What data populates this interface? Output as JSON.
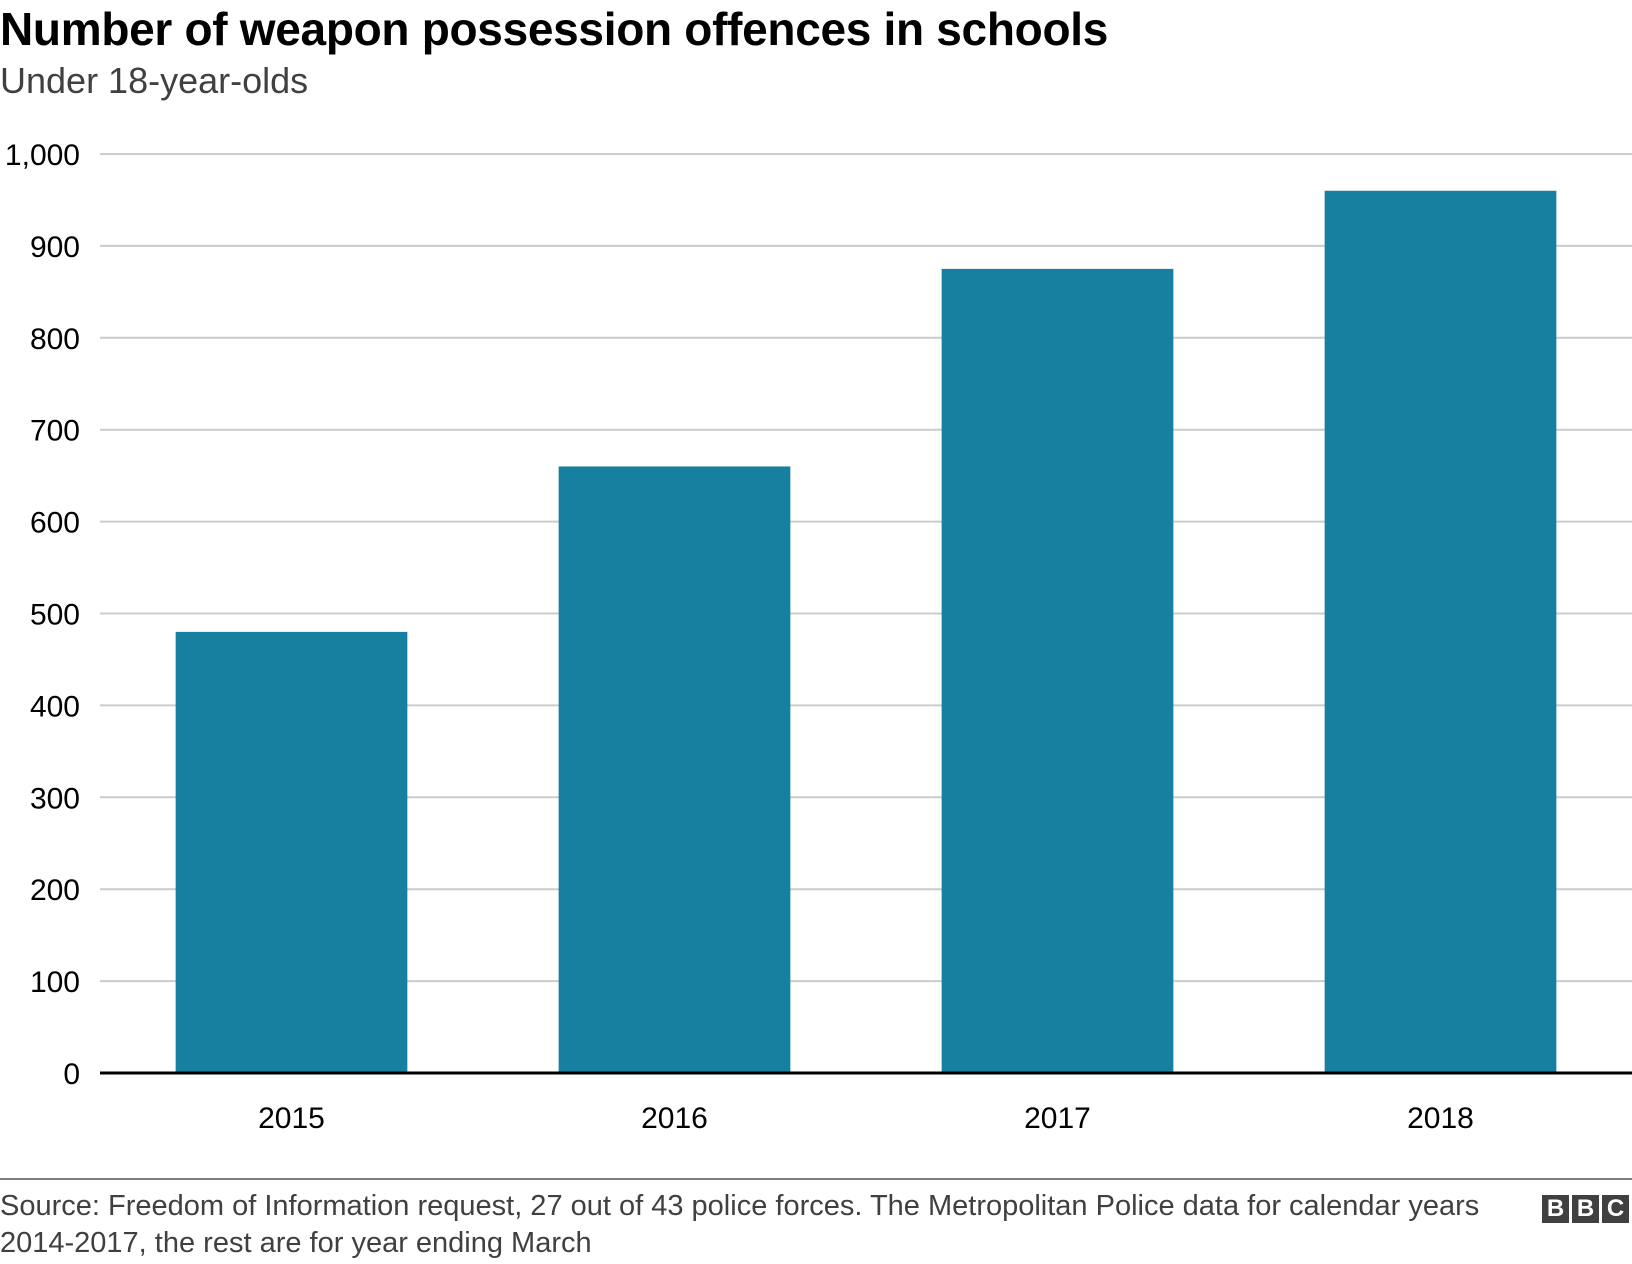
{
  "header": {
    "title": "Number of weapon possession offences in schools",
    "subtitle": "Under 18-year-olds"
  },
  "footer": {
    "source": "Source: Freedom of Information request, 27 out of 43 police forces. The Metropolitan Police data for calendar years 2014-2017, the rest are for year ending March",
    "logo_letters": [
      "B",
      "B",
      "C"
    ]
  },
  "colors": {
    "bar": "#1780a1",
    "grid": "#cccccc",
    "axis": "#000000",
    "text": "#000000",
    "muted": "#404040"
  },
  "chart_data": {
    "type": "bar",
    "title": "Number of weapon possession offences in schools",
    "subtitle": "Under 18-year-olds",
    "categories": [
      "2015",
      "2016",
      "2017",
      "2018"
    ],
    "values": [
      480,
      660,
      875,
      960
    ],
    "ylim": [
      0,
      1000
    ],
    "yticks": [
      0,
      100,
      200,
      300,
      400,
      500,
      600,
      700,
      800,
      900,
      1000
    ],
    "ytick_labels": [
      "0",
      "100",
      "200",
      "300",
      "400",
      "500",
      "600",
      "700",
      "800",
      "900",
      "1,000"
    ],
    "xlabel": "",
    "ylabel": "",
    "grid": true
  }
}
